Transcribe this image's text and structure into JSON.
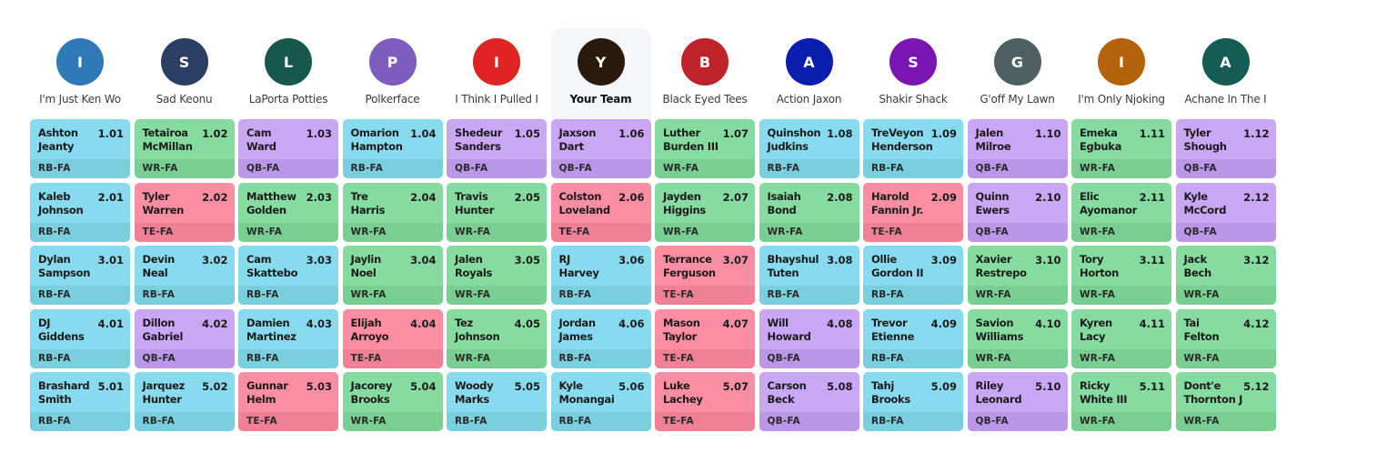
{
  "colors": {
    "RB": {
      "top": "#88dbee",
      "bottom": "#7acfdf"
    },
    "WR": {
      "top": "#86dca0",
      "bottom": "#78cf91"
    },
    "QB": {
      "top": "#c9a7f4",
      "bottom": "#bb97ea"
    },
    "TE": {
      "top": "#fb8ea3",
      "bottom": "#ef8096"
    }
  },
  "teams": [
    {
      "initial": "I",
      "name": "I'm Just Ken Wo",
      "color": "#2f7ab6",
      "selected": false
    },
    {
      "initial": "S",
      "name": "Sad Keonu",
      "color": "#2c3e64",
      "selected": false
    },
    {
      "initial": "L",
      "name": "LaPorta Potties",
      "color": "#16584d",
      "selected": false
    },
    {
      "initial": "P",
      "name": "Polkerface",
      "color": "#7e5dbe",
      "selected": false
    },
    {
      "initial": "I",
      "name": "I Think I Pulled I",
      "color": "#e02424",
      "selected": false
    },
    {
      "initial": "Y",
      "name": "Your Team",
      "color": "#2a1a0e",
      "selected": true
    },
    {
      "initial": "B",
      "name": "Black Eyed Tees",
      "color": "#c0242b",
      "selected": false
    },
    {
      "initial": "A",
      "name": "Action Jaxon",
      "color": "#0a1eb0",
      "selected": false
    },
    {
      "initial": "S",
      "name": "Shakir Shack",
      "color": "#7a14b3",
      "selected": false
    },
    {
      "initial": "G",
      "name": "G'off My Lawn",
      "color": "#4f6065",
      "selected": false
    },
    {
      "initial": "I",
      "name": "I'm Only Njoking",
      "color": "#b5620c",
      "selected": false
    },
    {
      "initial": "A",
      "name": "Achane In The I",
      "color": "#155c54",
      "selected": false
    }
  ],
  "rounds": [
    [
      {
        "name": [
          "Ashton",
          "Jeanty"
        ],
        "pick": "1.01",
        "pos": "RB-FA",
        "color": "RB"
      },
      {
        "name": [
          "Tetairoa",
          "McMillan"
        ],
        "pick": "1.02",
        "pos": "WR-FA",
        "color": "WR"
      },
      {
        "name": [
          "Cam",
          "Ward"
        ],
        "pick": "1.03",
        "pos": "QB-FA",
        "color": "QB"
      },
      {
        "name": [
          "Omarion",
          "Hampton"
        ],
        "pick": "1.04",
        "pos": "RB-FA",
        "color": "RB"
      },
      {
        "name": [
          "Shedeur",
          "Sanders"
        ],
        "pick": "1.05",
        "pos": "QB-FA",
        "color": "QB"
      },
      {
        "name": [
          "Jaxson",
          "Dart"
        ],
        "pick": "1.06",
        "pos": "QB-FA",
        "color": "QB"
      },
      {
        "name": [
          "Luther",
          "Burden III"
        ],
        "pick": "1.07",
        "pos": "WR-FA",
        "color": "WR"
      },
      {
        "name": [
          "Quinshon",
          "Judkins"
        ],
        "pick": "1.08",
        "pos": "RB-FA",
        "color": "RB"
      },
      {
        "name": [
          "TreVeyon",
          "Henderson"
        ],
        "pick": "1.09",
        "pos": "RB-FA",
        "color": "RB"
      },
      {
        "name": [
          "Jalen",
          "Milroe"
        ],
        "pick": "1.10",
        "pos": "QB-FA",
        "color": "QB"
      },
      {
        "name": [
          "Emeka",
          "Egbuka"
        ],
        "pick": "1.11",
        "pos": "WR-FA",
        "color": "WR"
      },
      {
        "name": [
          "Tyler",
          "Shough"
        ],
        "pick": "1.12",
        "pos": "QB-FA",
        "color": "QB"
      }
    ],
    [
      {
        "name": [
          "Kaleb",
          "Johnson"
        ],
        "pick": "2.01",
        "pos": "RB-FA",
        "color": "RB"
      },
      {
        "name": [
          "Tyler",
          "Warren"
        ],
        "pick": "2.02",
        "pos": "TE-FA",
        "color": "TE"
      },
      {
        "name": [
          "Matthew",
          "Golden"
        ],
        "pick": "2.03",
        "pos": "WR-FA",
        "color": "WR"
      },
      {
        "name": [
          "Tre",
          "Harris"
        ],
        "pick": "2.04",
        "pos": "WR-FA",
        "color": "WR"
      },
      {
        "name": [
          "Travis",
          "Hunter"
        ],
        "pick": "2.05",
        "pos": "WR-FA",
        "color": "WR"
      },
      {
        "name": [
          "Colston",
          "Loveland"
        ],
        "pick": "2.06",
        "pos": "TE-FA",
        "color": "TE"
      },
      {
        "name": [
          "Jayden",
          "Higgins"
        ],
        "pick": "2.07",
        "pos": "WR-FA",
        "color": "WR"
      },
      {
        "name": [
          "Isaiah",
          "Bond"
        ],
        "pick": "2.08",
        "pos": "WR-FA",
        "color": "WR"
      },
      {
        "name": [
          "Harold",
          "Fannin Jr."
        ],
        "pick": "2.09",
        "pos": "TE-FA",
        "color": "TE"
      },
      {
        "name": [
          "Quinn",
          "Ewers"
        ],
        "pick": "2.10",
        "pos": "QB-FA",
        "color": "QB"
      },
      {
        "name": [
          "Elic",
          "Ayomanor"
        ],
        "pick": "2.11",
        "pos": "WR-FA",
        "color": "WR"
      },
      {
        "name": [
          "Kyle",
          "McCord"
        ],
        "pick": "2.12",
        "pos": "QB-FA",
        "color": "QB"
      }
    ],
    [
      {
        "name": [
          "Dylan",
          "Sampson"
        ],
        "pick": "3.01",
        "pos": "RB-FA",
        "color": "RB"
      },
      {
        "name": [
          "Devin",
          "Neal"
        ],
        "pick": "3.02",
        "pos": "RB-FA",
        "color": "RB"
      },
      {
        "name": [
          "Cam",
          "Skattebo"
        ],
        "pick": "3.03",
        "pos": "RB-FA",
        "color": "RB"
      },
      {
        "name": [
          "Jaylin",
          "Noel"
        ],
        "pick": "3.04",
        "pos": "WR-FA",
        "color": "WR"
      },
      {
        "name": [
          "Jalen",
          "Royals"
        ],
        "pick": "3.05",
        "pos": "WR-FA",
        "color": "WR"
      },
      {
        "name": [
          "RJ",
          "Harvey"
        ],
        "pick": "3.06",
        "pos": "RB-FA",
        "color": "RB"
      },
      {
        "name": [
          "Terrance",
          "Ferguson"
        ],
        "pick": "3.07",
        "pos": "TE-FA",
        "color": "TE"
      },
      {
        "name": [
          "Bhayshul",
          "Tuten"
        ],
        "pick": "3.08",
        "pos": "RB-FA",
        "color": "RB"
      },
      {
        "name": [
          "Ollie",
          "Gordon II"
        ],
        "pick": "3.09",
        "pos": "RB-FA",
        "color": "RB"
      },
      {
        "name": [
          "Xavier",
          "Restrepo"
        ],
        "pick": "3.10",
        "pos": "WR-FA",
        "color": "WR"
      },
      {
        "name": [
          "Tory",
          "Horton"
        ],
        "pick": "3.11",
        "pos": "WR-FA",
        "color": "WR"
      },
      {
        "name": [
          "Jack",
          "Bech"
        ],
        "pick": "3.12",
        "pos": "WR-FA",
        "color": "WR"
      }
    ],
    [
      {
        "name": [
          "DJ",
          "Giddens"
        ],
        "pick": "4.01",
        "pos": "RB-FA",
        "color": "RB"
      },
      {
        "name": [
          "Dillon",
          "Gabriel"
        ],
        "pick": "4.02",
        "pos": "QB-FA",
        "color": "QB"
      },
      {
        "name": [
          "Damien",
          "Martinez"
        ],
        "pick": "4.03",
        "pos": "RB-FA",
        "color": "RB"
      },
      {
        "name": [
          "Elijah",
          "Arroyo"
        ],
        "pick": "4.04",
        "pos": "TE-FA",
        "color": "TE"
      },
      {
        "name": [
          "Tez",
          "Johnson"
        ],
        "pick": "4.05",
        "pos": "WR-FA",
        "color": "WR"
      },
      {
        "name": [
          "Jordan",
          "James"
        ],
        "pick": "4.06",
        "pos": "RB-FA",
        "color": "RB"
      },
      {
        "name": [
          "Mason",
          "Taylor"
        ],
        "pick": "4.07",
        "pos": "TE-FA",
        "color": "TE"
      },
      {
        "name": [
          "Will",
          "Howard"
        ],
        "pick": "4.08",
        "pos": "QB-FA",
        "color": "QB"
      },
      {
        "name": [
          "Trevor",
          "Etienne"
        ],
        "pick": "4.09",
        "pos": "RB-FA",
        "color": "RB"
      },
      {
        "name": [
          "Savion",
          "Williams"
        ],
        "pick": "4.10",
        "pos": "WR-FA",
        "color": "WR"
      },
      {
        "name": [
          "Kyren",
          "Lacy"
        ],
        "pick": "4.11",
        "pos": "WR-FA",
        "color": "WR"
      },
      {
        "name": [
          "Tai",
          "Felton"
        ],
        "pick": "4.12",
        "pos": "WR-FA",
        "color": "WR"
      }
    ],
    [
      {
        "name": [
          "Brashard",
          "Smith"
        ],
        "pick": "5.01",
        "pos": "RB-FA",
        "color": "RB"
      },
      {
        "name": [
          "Jarquez",
          "Hunter"
        ],
        "pick": "5.02",
        "pos": "RB-FA",
        "color": "RB"
      },
      {
        "name": [
          "Gunnar",
          "Helm"
        ],
        "pick": "5.03",
        "pos": "TE-FA",
        "color": "TE"
      },
      {
        "name": [
          "Jacorey",
          "Brooks"
        ],
        "pick": "5.04",
        "pos": "WR-FA",
        "color": "WR"
      },
      {
        "name": [
          "Woody",
          "Marks"
        ],
        "pick": "5.05",
        "pos": "RB-FA",
        "color": "RB"
      },
      {
        "name": [
          "Kyle",
          "Monangai"
        ],
        "pick": "5.06",
        "pos": "RB-FA",
        "color": "RB"
      },
      {
        "name": [
          "Luke",
          "Lachey"
        ],
        "pick": "5.07",
        "pos": "TE-FA",
        "color": "TE"
      },
      {
        "name": [
          "Carson",
          "Beck"
        ],
        "pick": "5.08",
        "pos": "QB-FA",
        "color": "QB"
      },
      {
        "name": [
          "Tahj",
          "Brooks"
        ],
        "pick": "5.09",
        "pos": "RB-FA",
        "color": "RB"
      },
      {
        "name": [
          "Riley",
          "Leonard"
        ],
        "pick": "5.10",
        "pos": "QB-FA",
        "color": "QB"
      },
      {
        "name": [
          "Ricky",
          "White III"
        ],
        "pick": "5.11",
        "pos": "WR-FA",
        "color": "WR"
      },
      {
        "name": [
          "Dont'e",
          "Thornton J"
        ],
        "pick": "5.12",
        "pos": "WR-FA",
        "color": "WR"
      }
    ]
  ]
}
